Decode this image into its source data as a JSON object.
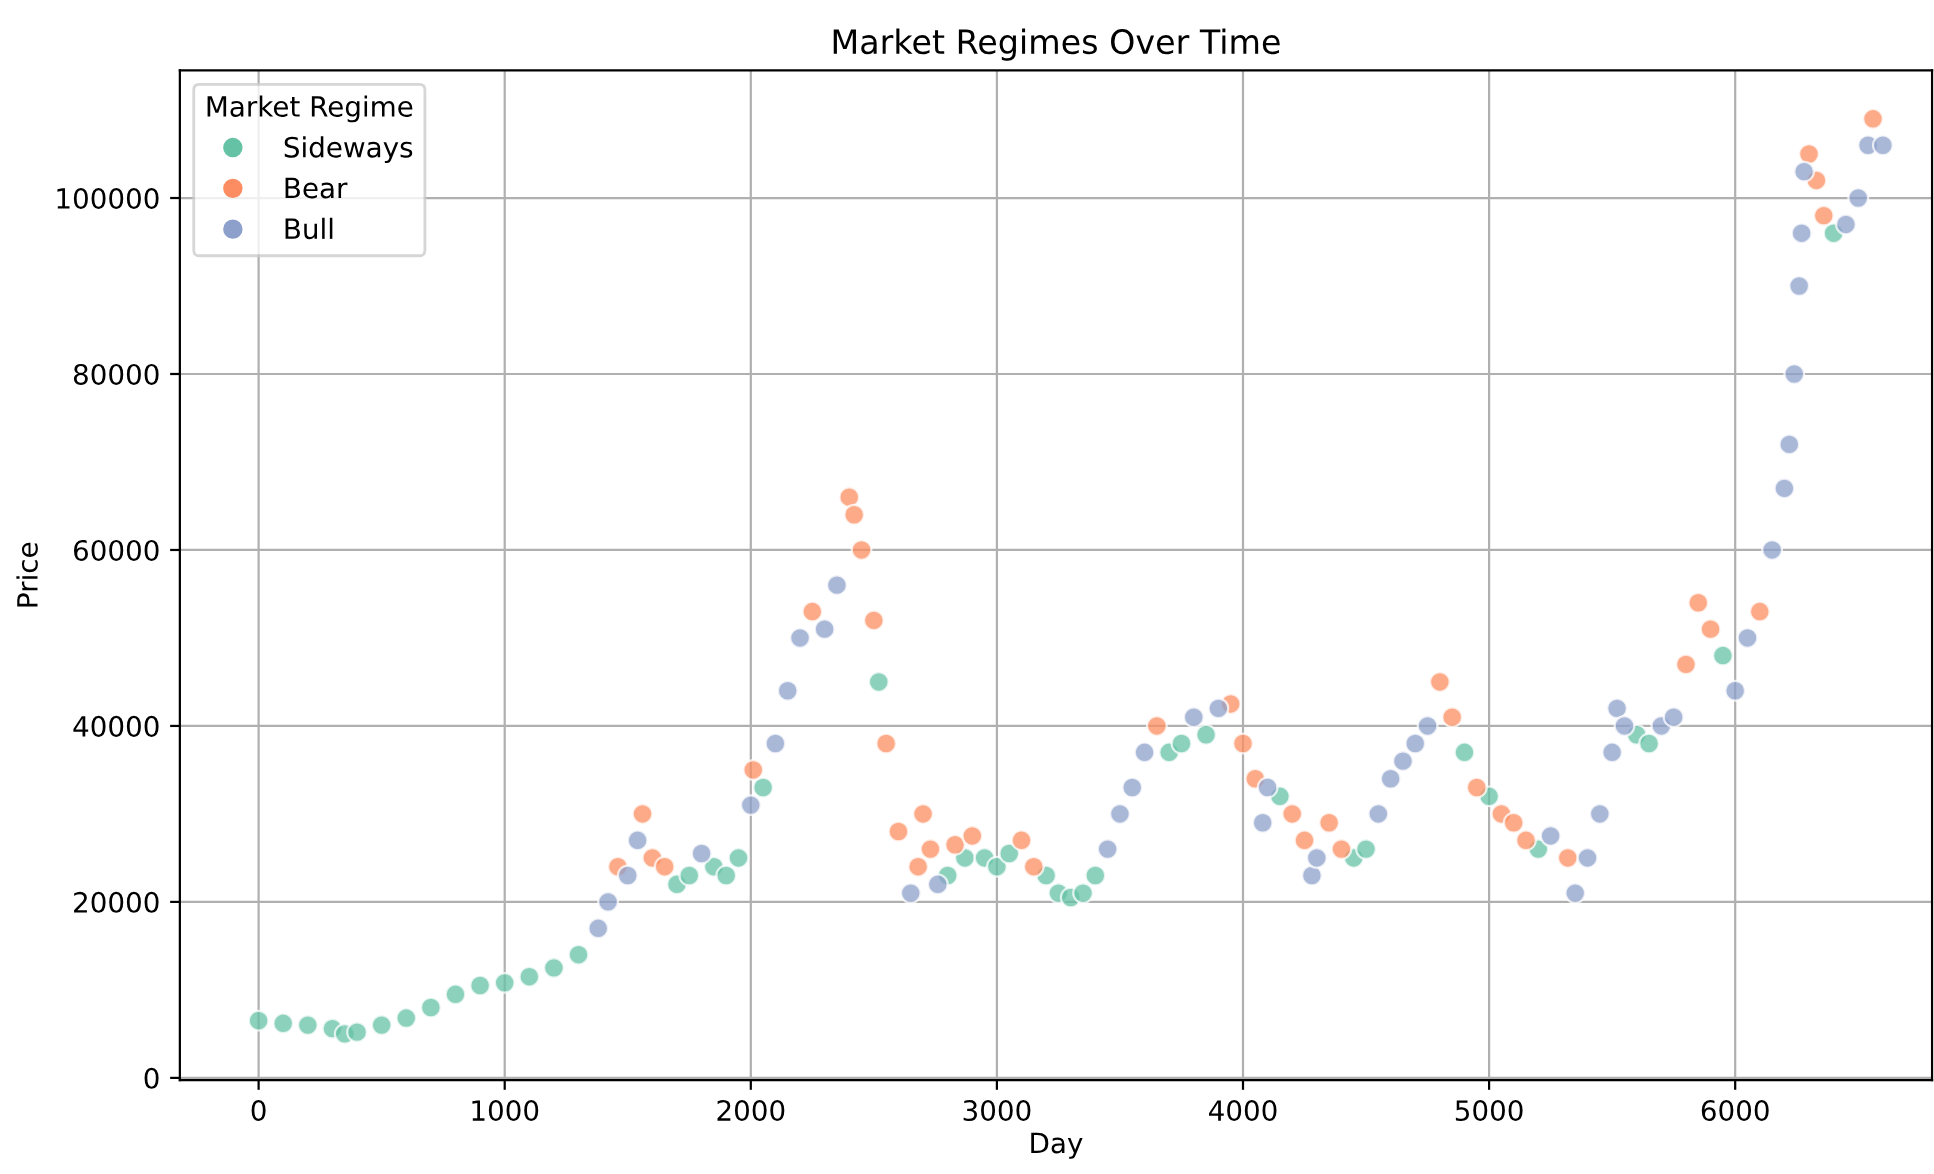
{
  "chart_data": {
    "type": "scatter",
    "title": "Market Regimes Over Time",
    "xlabel": "Day",
    "ylabel": "Price",
    "legend_title": "Market Regime",
    "legend": "top left",
    "grid": true,
    "marker": "circle",
    "xlim": [
      -320,
      6800
    ],
    "ylim": [
      -250,
      114500
    ],
    "xticks": [
      0,
      1000,
      2000,
      3000,
      4000,
      5000,
      6000
    ],
    "yticks": [
      0,
      20000,
      40000,
      60000,
      80000,
      100000
    ],
    "series": [
      {
        "name": "Sideways",
        "color": "#66c2a5",
        "x": [
          0,
          100,
          200,
          300,
          350,
          400,
          500,
          600,
          700,
          800,
          900,
          1000,
          1100,
          1200,
          1300,
          1700,
          1750,
          1850,
          1900,
          1950,
          2050,
          2520,
          2800,
          2870,
          2950,
          3000,
          3050,
          3200,
          3250,
          3300,
          3350,
          3400,
          3700,
          3750,
          3850,
          4150,
          4450,
          4500,
          4900,
          5000,
          5200,
          5600,
          5650,
          5950,
          6400
        ],
        "values": [
          6500,
          6200,
          6000,
          5600,
          5000,
          5200,
          6000,
          6800,
          8000,
          9500,
          10500,
          10800,
          11500,
          12500,
          14000,
          22000,
          23000,
          24000,
          23000,
          25000,
          33000,
          45000,
          23000,
          25000,
          25000,
          24000,
          25500,
          23000,
          21000,
          20500,
          21000,
          23000,
          37000,
          38000,
          39000,
          32000,
          25000,
          26000,
          37000,
          32000,
          26000,
          39000,
          38000,
          48000,
          96000
        ]
      },
      {
        "name": "Bear",
        "color": "#fc8d62",
        "x": [
          1460,
          1560,
          1600,
          1650,
          2010,
          2250,
          2400,
          2420,
          2450,
          2500,
          2550,
          2600,
          2680,
          2700,
          2730,
          2830,
          2900,
          3100,
          3150,
          3650,
          3950,
          4000,
          4050,
          4200,
          4250,
          4350,
          4400,
          4800,
          4850,
          4950,
          5050,
          5100,
          5150,
          5320,
          5800,
          5850,
          5900,
          6100,
          6300,
          6330,
          6360,
          6560
        ],
        "values": [
          24000,
          30000,
          25000,
          24000,
          35000,
          53000,
          66000,
          64000,
          60000,
          52000,
          38000,
          28000,
          24000,
          30000,
          26000,
          26500,
          27500,
          27000,
          24000,
          40000,
          42500,
          38000,
          34000,
          30000,
          27000,
          29000,
          26000,
          45000,
          41000,
          33000,
          30000,
          29000,
          27000,
          25000,
          47000,
          54000,
          51000,
          53000,
          105000,
          102000,
          98000,
          109000
        ]
      },
      {
        "name": "Bull",
        "color": "#8da0cb",
        "x": [
          1380,
          1420,
          1500,
          1540,
          1800,
          2000,
          2100,
          2150,
          2200,
          2300,
          2350,
          2650,
          2760,
          3450,
          3500,
          3550,
          3600,
          3800,
          3900,
          4080,
          4100,
          4280,
          4300,
          4550,
          4600,
          4650,
          4700,
          4750,
          5250,
          5350,
          5400,
          5450,
          5500,
          5520,
          5550,
          5700,
          5750,
          6000,
          6050,
          6150,
          6200,
          6220,
          6240,
          6260,
          6270,
          6280,
          6450,
          6500,
          6540,
          6600
        ],
        "values": [
          17000,
          20000,
          23000,
          27000,
          25500,
          31000,
          38000,
          44000,
          50000,
          51000,
          56000,
          21000,
          22000,
          26000,
          30000,
          33000,
          37000,
          41000,
          42000,
          29000,
          33000,
          23000,
          25000,
          30000,
          34000,
          36000,
          38000,
          40000,
          27500,
          21000,
          25000,
          30000,
          37000,
          42000,
          40000,
          40000,
          41000,
          44000,
          50000,
          60000,
          67000,
          72000,
          80000,
          90000,
          96000,
          103000,
          97000,
          100000,
          106000,
          106000
        ]
      }
    ]
  }
}
